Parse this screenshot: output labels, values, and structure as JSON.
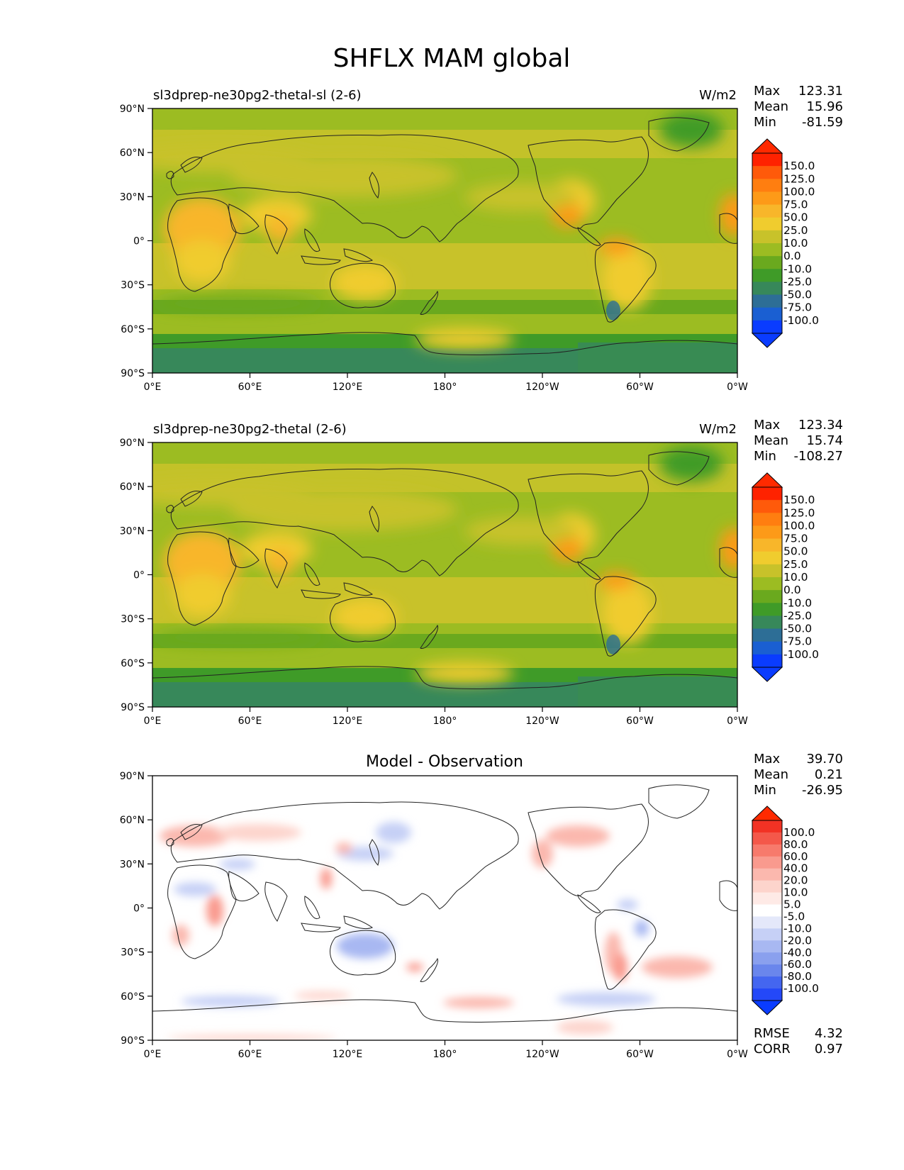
{
  "figure": {
    "title": "SHFLX MAM global"
  },
  "axes": {
    "lat_ticks": [
      "90°N",
      "60°N",
      "30°N",
      "0°",
      "30°S",
      "60°S",
      "90°S"
    ],
    "lon_ticks": [
      "0°E",
      "60°E",
      "120°E",
      "180°",
      "120°W",
      "60°W",
      "0°W"
    ]
  },
  "panels": [
    {
      "title": "sl3dprep-ne30pg2-thetal-sl (2-6)",
      "units": "W/m2",
      "stats": [
        {
          "label": "Max",
          "value": "123.31"
        },
        {
          "label": "Mean",
          "value": "15.96"
        },
        {
          "label": "Min",
          "value": "-81.59"
        }
      ],
      "colorbar": {
        "labels": [
          "150.0",
          "125.0",
          "100.0",
          "75.0",
          "50.0",
          "25.0",
          "10.0",
          "0.0",
          "-10.0",
          "-25.0",
          "-50.0",
          "-75.0",
          "-100.0"
        ],
        "colors": [
          "#ff2200",
          "#ff5a0a",
          "#ff7e10",
          "#fd9a18",
          "#f8b62a",
          "#f0cc2e",
          "#c8c22a",
          "#9cbc22",
          "#6aa91e",
          "#3f9b28",
          "#37885a",
          "#2d6e96",
          "#1a5fd2",
          "#0a3cff"
        ],
        "top_color": "#ff2a00",
        "bottom_color": "#0a3cff"
      }
    },
    {
      "title": "sl3dprep-ne30pg2-thetal (2-6)",
      "units": "W/m2",
      "stats": [
        {
          "label": "Max",
          "value": "123.34"
        },
        {
          "label": "Mean",
          "value": "15.74"
        },
        {
          "label": "Min",
          "value": "-108.27"
        }
      ],
      "colorbar": {
        "labels": [
          "150.0",
          "125.0",
          "100.0",
          "75.0",
          "50.0",
          "25.0",
          "10.0",
          "0.0",
          "-10.0",
          "-25.0",
          "-50.0",
          "-75.0",
          "-100.0"
        ],
        "colors": [
          "#ff2200",
          "#ff5a0a",
          "#ff7e10",
          "#fd9a18",
          "#f8b62a",
          "#f0cc2e",
          "#c8c22a",
          "#9cbc22",
          "#6aa91e",
          "#3f9b28",
          "#37885a",
          "#2d6e96",
          "#1a5fd2",
          "#0a3cff"
        ],
        "top_color": "#ff2a00",
        "bottom_color": "#0a3cff"
      }
    },
    {
      "title": "Model - Observation",
      "units": "",
      "stats": [
        {
          "label": "Max",
          "value": "39.70"
        },
        {
          "label": "Mean",
          "value": "0.21"
        },
        {
          "label": "Min",
          "value": "-26.95"
        }
      ],
      "extra_stats": [
        {
          "label": "RMSE",
          "value": "4.32"
        },
        {
          "label": "CORR",
          "value": "0.97"
        }
      ],
      "colorbar": {
        "labels": [
          "100.0",
          "80.0",
          "60.0",
          "40.0",
          "20.0",
          "10.0",
          "5.0",
          "-5.0",
          "-10.0",
          "-20.0",
          "-40.0",
          "-60.0",
          "-80.0",
          "-100.0"
        ],
        "colors": [
          "#f23224",
          "#f4584a",
          "#f77a6c",
          "#f99a8e",
          "#fbb8ae",
          "#fdd4cc",
          "#feeae6",
          "#ffffff",
          "#e4e8fa",
          "#c6d0f6",
          "#a8b8f2",
          "#8aa0ee",
          "#6a86ec",
          "#4466f0",
          "#2448f8"
        ],
        "top_color": "#ff2a00",
        "bottom_color": "#0a3cff"
      }
    }
  ]
}
